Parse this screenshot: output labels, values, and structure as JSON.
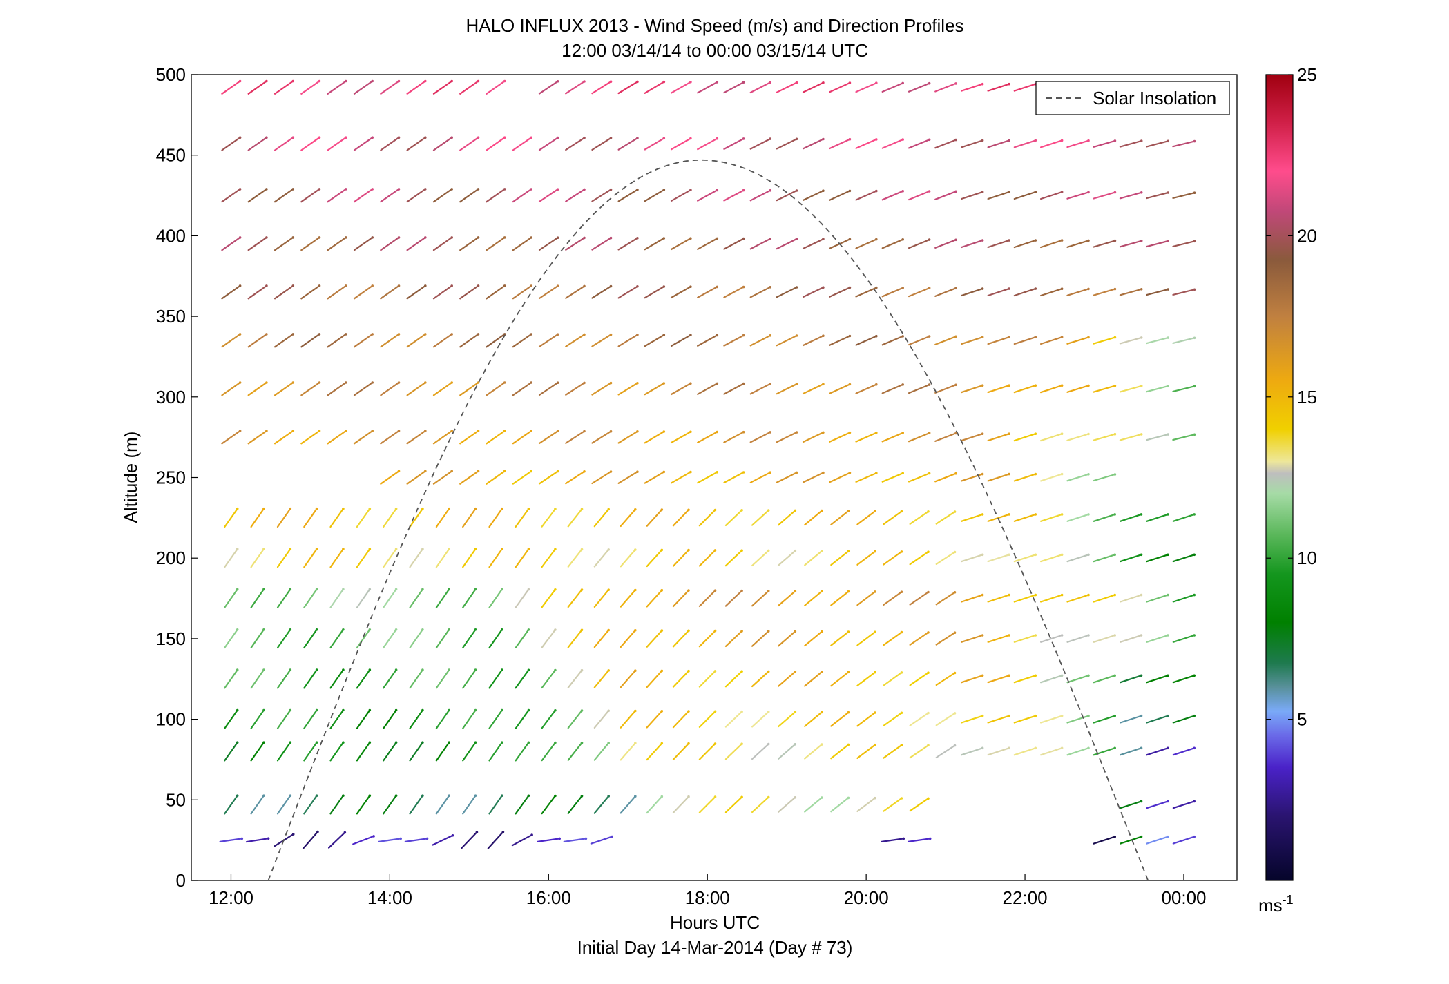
{
  "title_line1": "HALO INFLUX 2013 - Wind Speed (m/s) and Direction Profiles",
  "title_line2": "12:00 03/14/14 to 00:00 03/15/14  UTC",
  "chart_data": {
    "type": "quiver",
    "title": "HALO INFLUX 2013 - Wind Speed (m/s) and Direction Profiles",
    "subtitle": "12:00 03/14/14 to 00:00 03/15/14  UTC",
    "xlabel": "Hours UTC",
    "xlabel2": "Initial Day 14-Mar-2014 (Day # 73)",
    "ylabel": "Altitude (m)",
    "x_unit": "hours UTC",
    "xlim": [
      11.5,
      24.67
    ],
    "ylim": [
      0,
      500
    ],
    "x_ticks": [
      12,
      14,
      16,
      18,
      20,
      22,
      24
    ],
    "x_tick_labels": [
      "12:00",
      "14:00",
      "16:00",
      "18:00",
      "20:00",
      "22:00",
      "00:00"
    ],
    "y_ticks": [
      0,
      50,
      100,
      150,
      200,
      250,
      300,
      350,
      400,
      450,
      500
    ],
    "grid": false,
    "legend": {
      "label": "Solar Insolation",
      "placement": "top-right",
      "style": "dashed"
    },
    "colorbar": {
      "range": [
        0,
        25
      ],
      "ticks": [
        5,
        10,
        15,
        20,
        25
      ],
      "unit_label": "ms",
      "unit_superscript": "-1"
    },
    "times": [
      12.0,
      12.333,
      12.667,
      13.0,
      13.333,
      13.667,
      14.0,
      14.333,
      14.667,
      15.0,
      15.333,
      15.667,
      16.0,
      16.333,
      16.667,
      17.0,
      17.333,
      17.667,
      18.0,
      18.333,
      18.667,
      19.0,
      19.333,
      19.667,
      20.0,
      20.333,
      20.667,
      21.0,
      21.333,
      21.667,
      22.0,
      22.333,
      22.667,
      23.0,
      23.333,
      23.667,
      24.0
    ],
    "altitudes": [
      25,
      47,
      80,
      100,
      125,
      150,
      175,
      200,
      225,
      250,
      275,
      305,
      335,
      365,
      395,
      425,
      457,
      492
    ],
    "solar_insolation_curve": {
      "start_hour": 12.47,
      "peak_hour": 17.92,
      "end_hour": 23.55,
      "peak_altitude": 447
    }
  }
}
